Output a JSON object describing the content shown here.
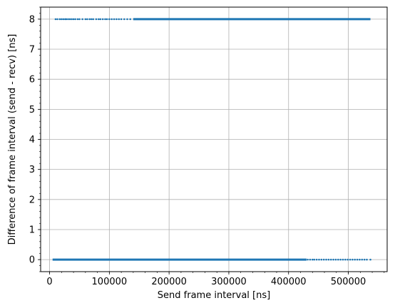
{
  "chart_data": {
    "type": "scatter",
    "title": "",
    "xlabel": "Send frame interval [ns]",
    "ylabel": "Difference of frame interval (send - recv) [ns]",
    "xlim": [
      -15000,
      565000
    ],
    "ylim": [
      -0.4,
      8.4
    ],
    "x_ticks": [
      0,
      100000,
      200000,
      300000,
      400000,
      500000
    ],
    "x_tick_labels": [
      "0",
      "100000",
      "200000",
      "300000",
      "400000",
      "500000"
    ],
    "y_ticks": [
      0,
      1,
      2,
      3,
      4,
      5,
      6,
      7,
      8
    ],
    "y_tick_labels": [
      "0",
      "1",
      "2",
      "3",
      "4",
      "5",
      "6",
      "7",
      "8"
    ],
    "x_minor_tick_step": 20000,
    "y_minor_tick_step": 0.2,
    "grid": true,
    "legend": "none",
    "marker_color": "#1f77b4",
    "series": [
      {
        "y": 8,
        "dense_x_range": [
          140000,
          537000
        ],
        "sparse_x": [
          10000,
          13000,
          17000,
          20000,
          23000,
          26000,
          28000,
          31000,
          34000,
          37000,
          40000,
          43000,
          47000,
          50000,
          55000,
          60000,
          63000,
          67000,
          70000,
          73000,
          78000,
          82000,
          85000,
          89000,
          93000,
          96000,
          100000,
          104000,
          108000,
          112000,
          116000,
          120000,
          125000,
          130000,
          135000
        ]
      },
      {
        "y": 0,
        "dense_x_range": [
          5000,
          430000
        ],
        "sparse_x": [
          432000,
          436000,
          440000,
          443000,
          447000,
          451000,
          455000,
          459000,
          463000,
          467000,
          471000,
          475000,
          479000,
          483000,
          487000,
          491000,
          495000,
          499000,
          503000,
          507000,
          511000,
          515000,
          519000,
          523000,
          527000,
          531000,
          537000
        ]
      }
    ]
  }
}
